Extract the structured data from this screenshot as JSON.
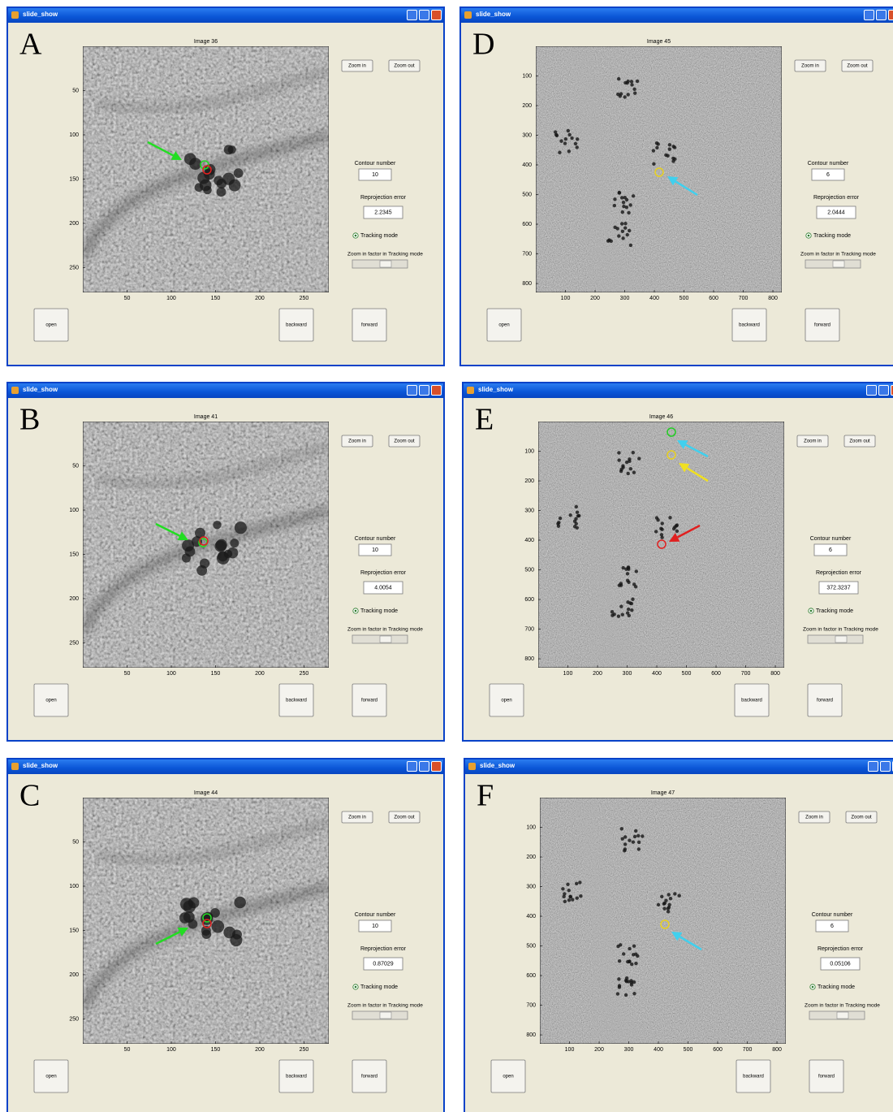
{
  "window_title": "slide_show",
  "panels": [
    {
      "letter": "A",
      "image_title": "Image 36",
      "xticks": [
        50,
        100,
        150,
        200,
        250
      ],
      "yticks": [
        50,
        100,
        150,
        200,
        250
      ],
      "xlim": [
        0,
        278
      ],
      "ylim": [
        0,
        278
      ],
      "zoom_in": "Zoom in",
      "zoom_out": "Zoom out",
      "contour_label": "Contour number",
      "contour_value": 10,
      "error_label": "Reprojection error",
      "error_value": 2.2345,
      "tracking_mode": "Tracking mode",
      "zoom_factor_label": "Zoom in factor in Tracking mode",
      "open": "open",
      "backward": "backward",
      "forward": "forward"
    },
    {
      "letter": "B",
      "image_title": "Image 41",
      "xticks": [
        50,
        100,
        150,
        200,
        250
      ],
      "yticks": [
        50,
        100,
        150,
        200,
        250
      ],
      "xlim": [
        0,
        278
      ],
      "ylim": [
        0,
        278
      ],
      "zoom_in": "Zoom in",
      "zoom_out": "Zoom out",
      "contour_label": "Contour number",
      "contour_value": 10,
      "error_label": "Reprojection error",
      "error_value": 4.0054,
      "tracking_mode": "Tracking mode",
      "zoom_factor_label": "Zoom in factor in Tracking mode",
      "open": "open",
      "backward": "backward",
      "forward": "forward"
    },
    {
      "letter": "C",
      "image_title": "Image 44",
      "xticks": [
        50,
        100,
        150,
        200,
        250
      ],
      "yticks": [
        50,
        100,
        150,
        200,
        250
      ],
      "xlim": [
        0,
        278
      ],
      "ylim": [
        0,
        278
      ],
      "zoom_in": "Zoom in",
      "zoom_out": "Zoom out",
      "contour_label": "Contour number",
      "contour_value": 10,
      "error_label": "Reprojection error",
      "error_value": 0.87029,
      "tracking_mode": "Tracking mode",
      "zoom_factor_label": "Zoom in factor in Tracking mode",
      "open": "open",
      "backward": "backward",
      "forward": "forward"
    },
    {
      "letter": "D",
      "image_title": "Image 45",
      "xticks": [
        100,
        200,
        300,
        400,
        500,
        600,
        700,
        800
      ],
      "yticks": [
        100,
        200,
        300,
        400,
        500,
        600,
        700,
        800
      ],
      "xlim": [
        0,
        830
      ],
      "ylim": [
        0,
        830
      ],
      "zoom_in": "Zoom in",
      "zoom_out": "Zoom out",
      "contour_label": "Contour number",
      "contour_value": 6,
      "error_label": "Reprojection error",
      "error_value": 2.0444,
      "tracking_mode": "Tracking mode",
      "zoom_factor_label": "Zoom in factor in Tracking mode",
      "open": "open",
      "backward": "backward",
      "forward": "forward"
    },
    {
      "letter": "E",
      "image_title": "Image 46",
      "xticks": [
        100,
        200,
        300,
        400,
        500,
        600,
        700,
        800
      ],
      "yticks": [
        100,
        200,
        300,
        400,
        500,
        600,
        700,
        800
      ],
      "xlim": [
        0,
        830
      ],
      "ylim": [
        0,
        830
      ],
      "zoom_in": "Zoom in",
      "zoom_out": "Zoom out",
      "contour_label": "Contour number",
      "contour_value": 6,
      "error_label": "Reprojection error",
      "error_value": 372.3237,
      "tracking_mode": "Tracking mode",
      "zoom_factor_label": "Zoom in factor in Tracking mode",
      "open": "open",
      "backward": "backward",
      "forward": "forward"
    },
    {
      "letter": "F",
      "image_title": "Image 47",
      "xticks": [
        100,
        200,
        300,
        400,
        500,
        600,
        700,
        800
      ],
      "yticks": [
        100,
        200,
        300,
        400,
        500,
        600,
        700,
        800
      ],
      "xlim": [
        0,
        830
      ],
      "ylim": [
        0,
        830
      ],
      "zoom_in": "Zoom in",
      "zoom_out": "Zoom out",
      "contour_label": "Contour number",
      "contour_value": 6,
      "error_label": "Reprojection error",
      "error_value": 0.05106,
      "tracking_mode": "Tracking mode",
      "zoom_factor_label": "Zoom in factor in Tracking mode",
      "open": "open",
      "backward": "backward",
      "forward": "forward"
    }
  ]
}
